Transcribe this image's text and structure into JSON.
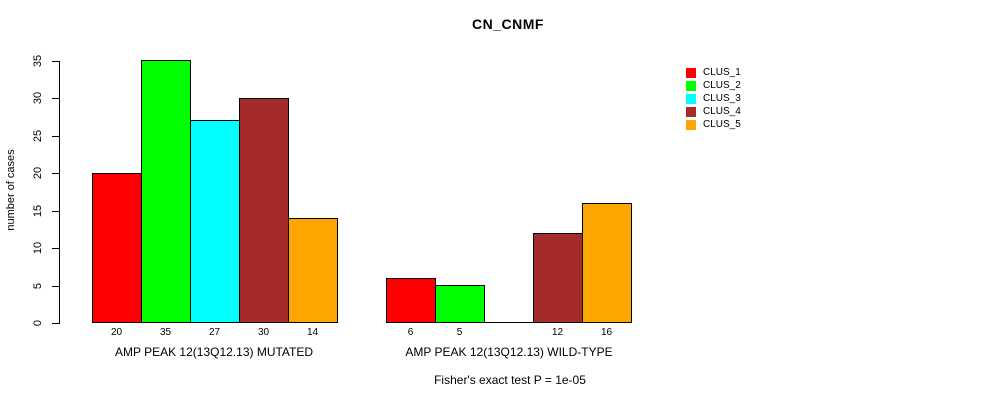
{
  "chart_data": {
    "type": "bar",
    "title": "CN_CNMF",
    "ylabel": "number of cases",
    "ylim": [
      0,
      35
    ],
    "yticks": [
      0,
      5,
      10,
      15,
      20,
      25,
      30,
      35
    ],
    "grid": false,
    "legend_position": "top-right",
    "categories": [
      "AMP PEAK 12(13Q12.13) MUTATED",
      "AMP PEAK 12(13Q12.13) WILD-TYPE"
    ],
    "series": [
      {
        "name": "CLUS_1",
        "color": "#ff0000",
        "values": [
          20,
          6
        ]
      },
      {
        "name": "CLUS_2",
        "color": "#00ff00",
        "values": [
          35,
          5
        ]
      },
      {
        "name": "CLUS_3",
        "color": "#00ffff",
        "values": [
          27,
          0
        ]
      },
      {
        "name": "CLUS_4",
        "color": "#a52a2a",
        "values": [
          30,
          12
        ]
      },
      {
        "name": "CLUS_5",
        "color": "#ffa500",
        "values": [
          14,
          16
        ]
      }
    ],
    "bar_value_labels": {
      "mutated": [
        "20",
        "35",
        "27",
        "30",
        "14"
      ],
      "wild_type": [
        "6",
        "5",
        "",
        "12",
        "16"
      ]
    },
    "annotation": "Fisher's exact test P = 1e-05"
  }
}
